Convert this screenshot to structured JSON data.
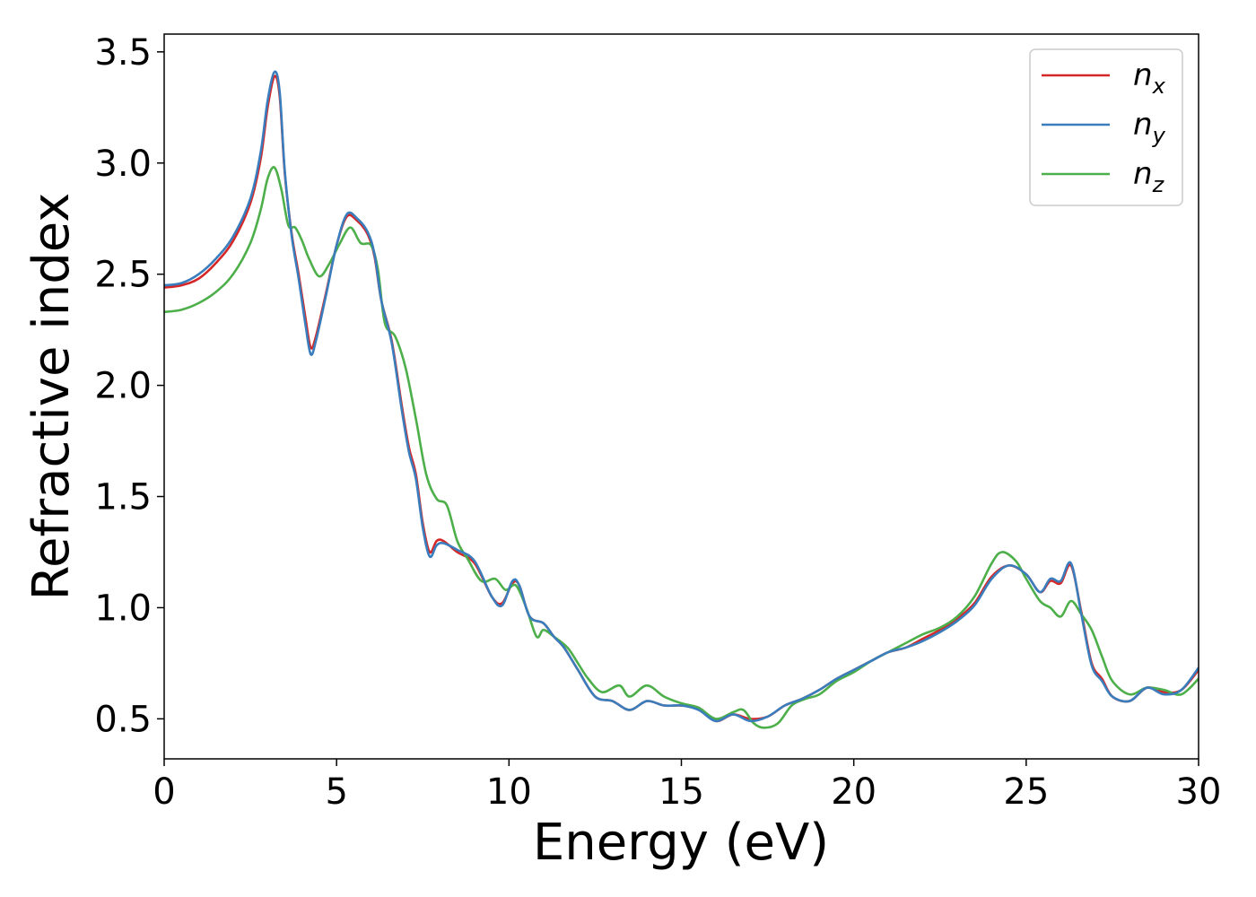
{
  "chart_data": {
    "type": "line",
    "title": "",
    "xlabel": "Energy (eV)",
    "ylabel": "Refractive index",
    "xlim": [
      0,
      30
    ],
    "ylim": [
      0.32,
      3.58
    ],
    "xticks": [
      0,
      5,
      10,
      15,
      20,
      25,
      30
    ],
    "yticks": [
      0.5,
      1.0,
      1.5,
      2.0,
      2.5,
      3.0,
      3.5
    ],
    "xtick_labels": [
      "0",
      "5",
      "10",
      "15",
      "20",
      "25",
      "30"
    ],
    "ytick_labels": [
      "0.5",
      "1.0",
      "1.5",
      "2.0",
      "2.5",
      "3.0",
      "3.5"
    ],
    "grid": false,
    "legend_position": "top-right",
    "series": [
      {
        "name": "n_x",
        "legend_base": "n",
        "legend_sub": "x",
        "color": "#d62728",
        "points": [
          [
            0,
            2.44
          ],
          [
            0.5,
            2.45
          ],
          [
            1,
            2.48
          ],
          [
            1.5,
            2.55
          ],
          [
            2,
            2.65
          ],
          [
            2.5,
            2.82
          ],
          [
            2.8,
            3.02
          ],
          [
            3.0,
            3.25
          ],
          [
            3.2,
            3.39
          ],
          [
            3.35,
            3.3
          ],
          [
            3.5,
            2.95
          ],
          [
            3.7,
            2.68
          ],
          [
            3.9,
            2.5
          ],
          [
            4.1,
            2.3
          ],
          [
            4.25,
            2.17
          ],
          [
            4.4,
            2.22
          ],
          [
            4.7,
            2.42
          ],
          [
            5.0,
            2.63
          ],
          [
            5.3,
            2.76
          ],
          [
            5.6,
            2.74
          ],
          [
            5.9,
            2.68
          ],
          [
            6.1,
            2.58
          ],
          [
            6.3,
            2.38
          ],
          [
            6.6,
            2.2
          ],
          [
            6.9,
            1.9
          ],
          [
            7.1,
            1.72
          ],
          [
            7.3,
            1.6
          ],
          [
            7.5,
            1.38
          ],
          [
            7.7,
            1.25
          ],
          [
            7.9,
            1.3
          ],
          [
            8.1,
            1.3
          ],
          [
            8.5,
            1.25
          ],
          [
            9.0,
            1.2
          ],
          [
            9.5,
            1.05
          ],
          [
            9.8,
            1.02
          ],
          [
            10.1,
            1.11
          ],
          [
            10.3,
            1.1
          ],
          [
            10.6,
            0.96
          ],
          [
            11.0,
            0.93
          ],
          [
            11.3,
            0.87
          ],
          [
            11.6,
            0.82
          ],
          [
            12.0,
            0.72
          ],
          [
            12.5,
            0.6
          ],
          [
            13.0,
            0.58
          ],
          [
            13.5,
            0.54
          ],
          [
            14.0,
            0.58
          ],
          [
            14.5,
            0.56
          ],
          [
            15.0,
            0.56
          ],
          [
            15.5,
            0.55
          ],
          [
            16.0,
            0.49
          ],
          [
            16.5,
            0.52
          ],
          [
            17.0,
            0.5
          ],
          [
            17.5,
            0.51
          ],
          [
            18.0,
            0.56
          ],
          [
            18.5,
            0.59
          ],
          [
            19.0,
            0.63
          ],
          [
            19.5,
            0.68
          ],
          [
            20.0,
            0.72
          ],
          [
            20.5,
            0.76
          ],
          [
            21.0,
            0.8
          ],
          [
            21.5,
            0.82
          ],
          [
            22.0,
            0.86
          ],
          [
            22.5,
            0.9
          ],
          [
            23.0,
            0.95
          ],
          [
            23.5,
            1.02
          ],
          [
            24.0,
            1.14
          ],
          [
            24.5,
            1.19
          ],
          [
            25.0,
            1.15
          ],
          [
            25.4,
            1.07
          ],
          [
            25.7,
            1.12
          ],
          [
            26.0,
            1.11
          ],
          [
            26.3,
            1.19
          ],
          [
            26.6,
            0.98
          ],
          [
            26.9,
            0.75
          ],
          [
            27.2,
            0.68
          ],
          [
            27.5,
            0.6
          ],
          [
            28.0,
            0.58
          ],
          [
            28.5,
            0.64
          ],
          [
            29.0,
            0.62
          ],
          [
            29.5,
            0.63
          ],
          [
            30.0,
            0.72
          ]
        ]
      },
      {
        "name": "n_y",
        "legend_base": "n",
        "legend_sub": "y",
        "color": "#3a7dbd",
        "points": [
          [
            0,
            2.45
          ],
          [
            0.5,
            2.46
          ],
          [
            1,
            2.5
          ],
          [
            1.5,
            2.57
          ],
          [
            2,
            2.67
          ],
          [
            2.5,
            2.84
          ],
          [
            2.8,
            3.05
          ],
          [
            3.0,
            3.28
          ],
          [
            3.2,
            3.41
          ],
          [
            3.35,
            3.32
          ],
          [
            3.5,
            2.96
          ],
          [
            3.7,
            2.67
          ],
          [
            3.9,
            2.48
          ],
          [
            4.1,
            2.27
          ],
          [
            4.25,
            2.14
          ],
          [
            4.4,
            2.2
          ],
          [
            4.7,
            2.41
          ],
          [
            5.0,
            2.63
          ],
          [
            5.3,
            2.77
          ],
          [
            5.6,
            2.75
          ],
          [
            5.9,
            2.69
          ],
          [
            6.1,
            2.59
          ],
          [
            6.3,
            2.38
          ],
          [
            6.6,
            2.19
          ],
          [
            6.9,
            1.88
          ],
          [
            7.1,
            1.7
          ],
          [
            7.3,
            1.58
          ],
          [
            7.5,
            1.36
          ],
          [
            7.7,
            1.23
          ],
          [
            7.9,
            1.28
          ],
          [
            8.1,
            1.29
          ],
          [
            8.5,
            1.26
          ],
          [
            9.0,
            1.21
          ],
          [
            9.5,
            1.05
          ],
          [
            9.8,
            1.01
          ],
          [
            10.1,
            1.12
          ],
          [
            10.3,
            1.1
          ],
          [
            10.6,
            0.96
          ],
          [
            11.0,
            0.93
          ],
          [
            11.3,
            0.87
          ],
          [
            11.6,
            0.82
          ],
          [
            12.0,
            0.72
          ],
          [
            12.5,
            0.6
          ],
          [
            13.0,
            0.58
          ],
          [
            13.5,
            0.54
          ],
          [
            14.0,
            0.58
          ],
          [
            14.5,
            0.56
          ],
          [
            15.0,
            0.56
          ],
          [
            15.5,
            0.54
          ],
          [
            16.0,
            0.49
          ],
          [
            16.5,
            0.52
          ],
          [
            17.0,
            0.49
          ],
          [
            17.5,
            0.51
          ],
          [
            18.0,
            0.56
          ],
          [
            18.5,
            0.59
          ],
          [
            19.0,
            0.63
          ],
          [
            19.5,
            0.68
          ],
          [
            20.0,
            0.72
          ],
          [
            20.5,
            0.76
          ],
          [
            21.0,
            0.8
          ],
          [
            21.5,
            0.82
          ],
          [
            22.0,
            0.85
          ],
          [
            22.5,
            0.89
          ],
          [
            23.0,
            0.94
          ],
          [
            23.5,
            1.01
          ],
          [
            24.0,
            1.13
          ],
          [
            24.5,
            1.19
          ],
          [
            25.0,
            1.15
          ],
          [
            25.4,
            1.07
          ],
          [
            25.7,
            1.13
          ],
          [
            26.0,
            1.12
          ],
          [
            26.3,
            1.2
          ],
          [
            26.6,
            0.97
          ],
          [
            26.9,
            0.74
          ],
          [
            27.2,
            0.67
          ],
          [
            27.5,
            0.6
          ],
          [
            28.0,
            0.58
          ],
          [
            28.5,
            0.64
          ],
          [
            29.0,
            0.61
          ],
          [
            29.5,
            0.63
          ],
          [
            30.0,
            0.73
          ]
        ]
      },
      {
        "name": "n_z",
        "legend_base": "n",
        "legend_sub": "z",
        "color": "#4daf4a",
        "points": [
          [
            0,
            2.33
          ],
          [
            0.5,
            2.34
          ],
          [
            1,
            2.37
          ],
          [
            1.5,
            2.42
          ],
          [
            2,
            2.5
          ],
          [
            2.5,
            2.64
          ],
          [
            2.8,
            2.79
          ],
          [
            3.0,
            2.93
          ],
          [
            3.2,
            2.98
          ],
          [
            3.4,
            2.88
          ],
          [
            3.6,
            2.72
          ],
          [
            3.8,
            2.71
          ],
          [
            4.0,
            2.65
          ],
          [
            4.2,
            2.57
          ],
          [
            4.5,
            2.49
          ],
          [
            4.8,
            2.55
          ],
          [
            5.1,
            2.64
          ],
          [
            5.4,
            2.71
          ],
          [
            5.7,
            2.64
          ],
          [
            6.0,
            2.63
          ],
          [
            6.2,
            2.52
          ],
          [
            6.4,
            2.28
          ],
          [
            6.7,
            2.22
          ],
          [
            7.0,
            2.08
          ],
          [
            7.3,
            1.85
          ],
          [
            7.6,
            1.6
          ],
          [
            7.9,
            1.49
          ],
          [
            8.2,
            1.46
          ],
          [
            8.5,
            1.3
          ],
          [
            8.8,
            1.22
          ],
          [
            9.2,
            1.12
          ],
          [
            9.6,
            1.13
          ],
          [
            9.9,
            1.08
          ],
          [
            10.2,
            1.1
          ],
          [
            10.5,
            1.0
          ],
          [
            10.8,
            0.87
          ],
          [
            11.0,
            0.9
          ],
          [
            11.3,
            0.87
          ],
          [
            11.7,
            0.82
          ],
          [
            12.0,
            0.75
          ],
          [
            12.3,
            0.68
          ],
          [
            12.7,
            0.62
          ],
          [
            13.2,
            0.65
          ],
          [
            13.5,
            0.6
          ],
          [
            14.0,
            0.65
          ],
          [
            14.5,
            0.6
          ],
          [
            15.0,
            0.57
          ],
          [
            15.5,
            0.55
          ],
          [
            16.0,
            0.5
          ],
          [
            16.5,
            0.53
          ],
          [
            16.8,
            0.54
          ],
          [
            17.1,
            0.48
          ],
          [
            17.4,
            0.46
          ],
          [
            17.8,
            0.48
          ],
          [
            18.2,
            0.56
          ],
          [
            18.6,
            0.59
          ],
          [
            19.0,
            0.61
          ],
          [
            19.5,
            0.67
          ],
          [
            20.0,
            0.71
          ],
          [
            20.5,
            0.76
          ],
          [
            21.0,
            0.8
          ],
          [
            21.5,
            0.84
          ],
          [
            22.0,
            0.88
          ],
          [
            22.5,
            0.91
          ],
          [
            23.0,
            0.96
          ],
          [
            23.5,
            1.05
          ],
          [
            24.0,
            1.2
          ],
          [
            24.3,
            1.25
          ],
          [
            24.7,
            1.21
          ],
          [
            25.0,
            1.13
          ],
          [
            25.4,
            1.03
          ],
          [
            25.7,
            1.0
          ],
          [
            26.0,
            0.96
          ],
          [
            26.3,
            1.03
          ],
          [
            26.6,
            0.97
          ],
          [
            26.9,
            0.9
          ],
          [
            27.2,
            0.78
          ],
          [
            27.5,
            0.67
          ],
          [
            28.0,
            0.61
          ],
          [
            28.5,
            0.64
          ],
          [
            29.0,
            0.63
          ],
          [
            29.5,
            0.61
          ],
          [
            30.0,
            0.68
          ]
        ]
      }
    ]
  }
}
